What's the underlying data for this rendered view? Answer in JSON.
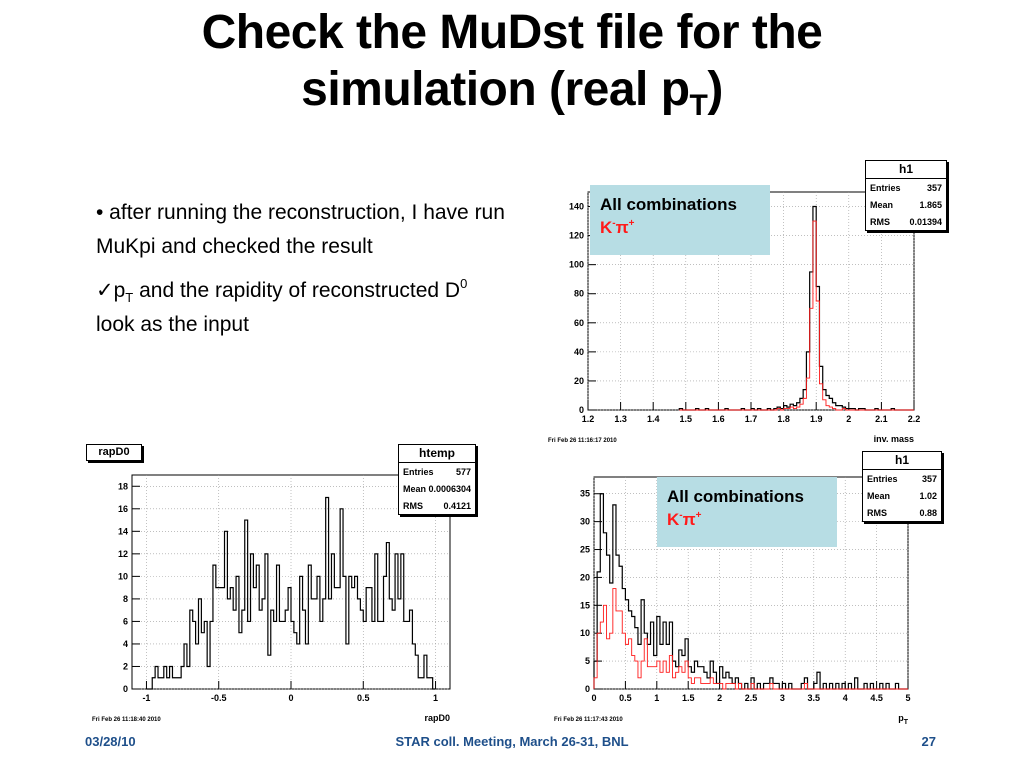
{
  "slide": {
    "title_line1": "Check the MuDst file for the",
    "title_line2_main": "simulation (real p",
    "title_line2_sub": "T",
    "title_line2_end": ")"
  },
  "bullets": {
    "b1": "• after running the reconstruction, I have run MuKpi and checked the result",
    "b2_check": "✓",
    "b2_p": "p",
    "b2_sub": "T",
    "b2_mid": " and the rapidity of reconstructed D",
    "b2_sup": "0",
    "b2_end": " look as the input"
  },
  "footer": {
    "date": "03/28/10",
    "meeting": "STAR coll. Meeting, March 26-31, BNL",
    "page": "27"
  },
  "legend": {
    "line1": "All combinations",
    "particle_k": "K",
    "particle_k_sup": "-",
    "particle_pi": "π",
    "particle_pi_sup": "+"
  },
  "colors": {
    "all_combinations": "#000000",
    "kpi_pairs": "#ff1a1a",
    "legend_bg": "#b7dde4",
    "footer_text": "#1e4f8a"
  },
  "histograms": {
    "mass": {
      "stats": {
        "title": "h1",
        "entries_label": "Entries",
        "entries": "357",
        "mean_label": "Mean",
        "mean": "1.865",
        "rms_label": "RMS",
        "rms": "0.01394"
      },
      "timestamp": "Fri Feb 26 11:16:17 2010",
      "xaxis_title": "inv. mass"
    },
    "rap": {
      "name_label": "rapD0",
      "stats": {
        "title": "htemp",
        "entries_label": "Entries",
        "entries": "577",
        "mean_label": "Mean",
        "mean": "0.0006304",
        "rms_label": "RMS",
        "rms": "0.4121"
      },
      "timestamp": "Fri Feb 26 11:18:40 2010",
      "xaxis_title": "rapD0"
    },
    "pt": {
      "stats": {
        "title": "h1",
        "entries_label": "Entries",
        "entries": "357",
        "mean_label": "Mean",
        "mean": "1.02",
        "rms_label": "RMS",
        "rms": "0.88"
      },
      "timestamp": "Fri Feb 26 11:17:43 2010",
      "xaxis_title": "p",
      "xaxis_title_sub": "T"
    }
  },
  "chart_data": [
    {
      "type": "bar",
      "name": "mass",
      "xlim": [
        1.2,
        2.2
      ],
      "ylim": [
        0,
        150
      ],
      "xticks": [
        "1.2",
        "1.3",
        "1.4",
        "1.5",
        "1.6",
        "1.7",
        "1.8",
        "1.9",
        "2",
        "2.1",
        "2.2"
      ],
      "yticks": [
        "0",
        "20",
        "40",
        "60",
        "80",
        "100",
        "120",
        "140"
      ],
      "xstart": 1.48,
      "xstep": 0.01,
      "series": [
        {
          "values": [
            1,
            0,
            0,
            0,
            0,
            1,
            0,
            0,
            1,
            0,
            0,
            0,
            0,
            0,
            1,
            0,
            0,
            0,
            0,
            1,
            0,
            0,
            1,
            0,
            1,
            0,
            0,
            1,
            0,
            1,
            2,
            1,
            3,
            2,
            4,
            3,
            5,
            8,
            14,
            40,
            95,
            140,
            85,
            30,
            14,
            10,
            8,
            5,
            3,
            3,
            2,
            1,
            1,
            1,
            0,
            1,
            1,
            0,
            0,
            0,
            1,
            0,
            0,
            0,
            0,
            1,
            0,
            0,
            0,
            0,
            0,
            0
          ]
        },
        {
          "values": [
            0,
            0,
            0,
            0,
            0,
            0,
            0,
            0,
            0,
            0,
            0,
            0,
            0,
            0,
            0,
            0,
            0,
            0,
            0,
            0,
            0,
            0,
            0,
            0,
            0,
            0,
            0,
            0,
            0,
            0,
            1,
            0,
            1,
            1,
            2,
            1,
            2,
            4,
            8,
            22,
            70,
            130,
            75,
            18,
            7,
            3,
            2,
            1,
            0,
            0,
            1,
            0,
            0,
            0,
            0,
            0,
            0,
            0,
            0,
            0,
            0,
            0,
            0,
            0,
            0,
            0,
            0,
            0,
            0,
            0,
            0,
            0
          ]
        }
      ]
    },
    {
      "type": "bar",
      "name": "rap",
      "xlim": [
        -1.1,
        1.1
      ],
      "ylim": [
        0,
        19
      ],
      "xticks": [
        "-1",
        "-0.5",
        "0",
        "0.5",
        "1"
      ],
      "yticks": [
        "0",
        "2",
        "4",
        "6",
        "8",
        "10",
        "12",
        "14",
        "16",
        "18"
      ],
      "xstart": -1.0,
      "xstep": 0.02,
      "series": [
        {
          "values": [
            0,
            0,
            1,
            2,
            1,
            1,
            2,
            1,
            2,
            1,
            1,
            1,
            2,
            4,
            2,
            7,
            6,
            4,
            8,
            5,
            6,
            2,
            6,
            11,
            9,
            9,
            9,
            14,
            8,
            9,
            7,
            10,
            5,
            7,
            15,
            6,
            12,
            9,
            11,
            7,
            8,
            12,
            3,
            7,
            6,
            11,
            6,
            6,
            7,
            9,
            6,
            5,
            4,
            10,
            7,
            4,
            11,
            8,
            8,
            10,
            6,
            8,
            17,
            8,
            12,
            9,
            9,
            16,
            10,
            4,
            10,
            9,
            10,
            8,
            7,
            6,
            9,
            9,
            6,
            12,
            6,
            6,
            10,
            13,
            8,
            7,
            12,
            8,
            12,
            6,
            6,
            7,
            4,
            3,
            1,
            1,
            3,
            1,
            1,
            0
          ]
        }
      ]
    },
    {
      "type": "bar",
      "name": "pt",
      "xlim": [
        0,
        5
      ],
      "ylim": [
        0,
        38
      ],
      "xticks": [
        "0",
        "0.5",
        "1",
        "1.5",
        "2",
        "2.5",
        "3",
        "3.5",
        "4",
        "4.5",
        "5"
      ],
      "yticks": [
        "0",
        "5",
        "10",
        "15",
        "20",
        "25",
        "30",
        "35"
      ],
      "xstart": 0,
      "xstep": 0.05,
      "series": [
        {
          "values": [
            5,
            21,
            35,
            28,
            24,
            19,
            33,
            24,
            22,
            18,
            16,
            14,
            13,
            11,
            8,
            16,
            10,
            8,
            12,
            6,
            13,
            8,
            12,
            8,
            12,
            5,
            4,
            7,
            6,
            9,
            4,
            3,
            5,
            4,
            4,
            3,
            2,
            5,
            3,
            1,
            4,
            2,
            3,
            2,
            1,
            2,
            1,
            0,
            1,
            0,
            2,
            0,
            1,
            0,
            1,
            1,
            2,
            1,
            1,
            0,
            1,
            0,
            1,
            0,
            0,
            0,
            1,
            2,
            0,
            0,
            1,
            3,
            0,
            1,
            0,
            1,
            0,
            1,
            0,
            1,
            0,
            1,
            0,
            2,
            0,
            0,
            1,
            0,
            1,
            0,
            0,
            1,
            0,
            1,
            0,
            0,
            1,
            0,
            0,
            0
          ]
        },
        {
          "values": [
            2,
            10,
            12,
            15,
            9,
            10,
            18,
            14,
            14,
            10,
            8,
            9,
            6,
            5,
            2,
            5,
            9,
            4,
            4,
            4,
            5,
            3,
            5,
            3,
            6,
            2,
            3,
            4,
            3,
            5,
            2,
            1,
            2,
            2,
            1,
            1,
            1,
            2,
            1,
            1,
            1,
            0,
            1,
            1,
            1,
            0,
            1,
            0,
            0,
            0,
            1,
            0,
            0,
            0,
            0,
            0,
            1,
            0,
            0,
            0,
            0,
            0,
            0,
            0,
            0,
            0,
            0,
            1,
            0,
            0,
            0,
            0,
            0,
            0,
            0,
            0,
            0,
            0,
            0,
            0,
            0,
            0,
            0,
            0,
            0,
            0,
            0,
            0,
            0,
            0,
            0,
            0,
            0,
            0,
            0,
            0,
            0,
            0,
            0,
            0
          ]
        }
      ]
    }
  ]
}
